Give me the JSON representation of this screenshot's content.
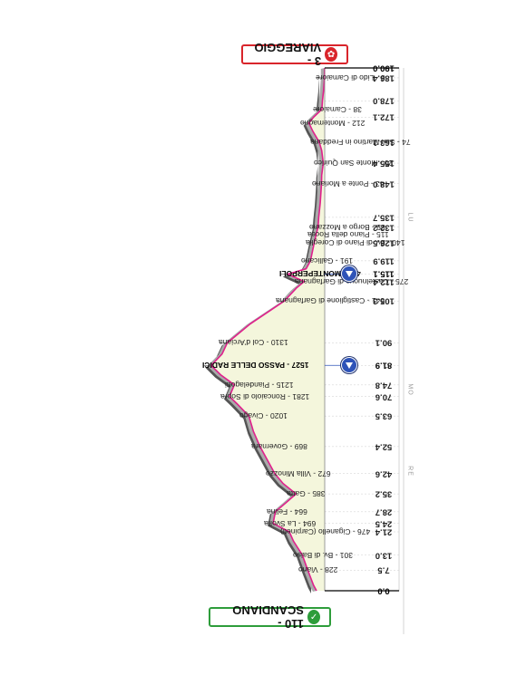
{
  "start": {
    "label": "110 - SCANDIANO",
    "color": "#2e9d3b"
  },
  "finish": {
    "label": "3 - VIAREGGIO",
    "color": "#d9252b"
  },
  "profile": {
    "fill_color": "#f4f6dc",
    "line_color": "#e0208c",
    "shade_color": "#aaaaaa",
    "total_km": 190.0,
    "points": [
      {
        "km": 0.0,
        "alt": 110
      },
      {
        "km": 2.0,
        "alt": 150
      },
      {
        "km": 7.5,
        "alt": 228
      },
      {
        "km": 13.0,
        "alt": 301
      },
      {
        "km": 18.0,
        "alt": 420
      },
      {
        "km": 21.4,
        "alt": 476
      },
      {
        "km": 24.5,
        "alt": 694
      },
      {
        "km": 28.7,
        "alt": 664
      },
      {
        "km": 32.0,
        "alt": 520
      },
      {
        "km": 35.2,
        "alt": 385
      },
      {
        "km": 39.0,
        "alt": 560
      },
      {
        "km": 42.6,
        "alt": 672
      },
      {
        "km": 48.0,
        "alt": 780
      },
      {
        "km": 52.4,
        "alt": 869
      },
      {
        "km": 58.0,
        "alt": 960
      },
      {
        "km": 63.5,
        "alt": 1020
      },
      {
        "km": 68.0,
        "alt": 1180
      },
      {
        "km": 70.6,
        "alt": 1281
      },
      {
        "km": 74.8,
        "alt": 1215
      },
      {
        "km": 78.5,
        "alt": 1400
      },
      {
        "km": 81.9,
        "alt": 1527
      },
      {
        "km": 86.0,
        "alt": 1380
      },
      {
        "km": 90.1,
        "alt": 1310
      },
      {
        "km": 97.0,
        "alt": 1000
      },
      {
        "km": 105.3,
        "alt": 541
      },
      {
        "km": 110.0,
        "alt": 380
      },
      {
        "km": 112.4,
        "alt": 275
      },
      {
        "km": 114.0,
        "alt": 410
      },
      {
        "km": 115.1,
        "alt": 491
      },
      {
        "km": 117.0,
        "alt": 250
      },
      {
        "km": 119.9,
        "alt": 191
      },
      {
        "km": 126.5,
        "alt": 140
      },
      {
        "km": 129.5,
        "alt": 115
      },
      {
        "km": 132.2,
        "alt": 89
      },
      {
        "km": 135.7,
        "alt": 80
      },
      {
        "km": 141.0,
        "alt": 60
      },
      {
        "km": 148.0,
        "alt": 43
      },
      {
        "km": 151.0,
        "alt": 40
      },
      {
        "km": 155.4,
        "alt": 20
      },
      {
        "km": 160.0,
        "alt": 40
      },
      {
        "km": 163.1,
        "alt": 74
      },
      {
        "km": 167.0,
        "alt": 160
      },
      {
        "km": 170.0,
        "alt": 212
      },
      {
        "km": 172.1,
        "alt": 150
      },
      {
        "km": 175.0,
        "alt": 38
      },
      {
        "km": 178.0,
        "alt": 30
      },
      {
        "km": 182.0,
        "alt": 15
      },
      {
        "km": 186.4,
        "alt": 3
      },
      {
        "km": 190.0,
        "alt": 3
      }
    ]
  },
  "km_labels": [
    "0.0",
    "7.5",
    "13.0",
    "21.4",
    "24.5",
    "28.7",
    "35.2",
    "42.6",
    "52.4",
    "63.5",
    "70.6",
    "74.8",
    "81.9",
    "90.1",
    "105.3",
    "112.4",
    "115.1",
    "119.9",
    "126.5",
    "132.2",
    "135.7",
    "148.0",
    "155.4",
    "163.1",
    "172.1",
    "178.0",
    "186.4",
    "190.0"
  ],
  "places": [
    {
      "km": 7.5,
      "text": "228 - Viano"
    },
    {
      "km": 13.0,
      "text": "301 - Bv. di Baiso"
    },
    {
      "km": 21.4,
      "text": "476 - Ciganello (Carpineti)"
    },
    {
      "km": 24.5,
      "text": "694 - La Svolta"
    },
    {
      "km": 28.7,
      "text": "664 - Felina"
    },
    {
      "km": 35.2,
      "text": "385 - Gatta"
    },
    {
      "km": 42.6,
      "text": "672 - Villa Minozzo"
    },
    {
      "km": 52.4,
      "text": "869 - Governara"
    },
    {
      "km": 63.5,
      "text": "1020 - Civago"
    },
    {
      "km": 70.6,
      "text": "1281 - Roncaiolo di Sopra"
    },
    {
      "km": 74.8,
      "text": "1215 - Piandelagotti"
    },
    {
      "km": 81.9,
      "text": "1527 - PASSO DELLE RADICI",
      "major": true
    },
    {
      "km": 90.1,
      "text": "1310 - Col d'Arciana"
    },
    {
      "km": 105.3,
      "text": "541 - Castiglione di Garfagnana"
    },
    {
      "km": 112.4,
      "text": "275 - Castelnuovo di Garfagnana"
    },
    {
      "km": 115.1,
      "text": "491 - MONTEPERPOLI",
      "major": true
    },
    {
      "km": 119.9,
      "text": "191 - Gallicano"
    },
    {
      "km": 126.5,
      "text": "140 - Bv. di Piano di Coreglia"
    },
    {
      "km": 129.5,
      "text": "115 - Piano della Rocca"
    },
    {
      "km": 132.2,
      "text": "89 - Borgo a Mozzano"
    },
    {
      "km": 148.0,
      "text": "43 - Ponte a Moriano"
    },
    {
      "km": 155.4,
      "text": "20 - Monte San Quirico"
    },
    {
      "km": 163.1,
      "text": "74 - San Martino in Freddana"
    },
    {
      "km": 170.0,
      "text": "212 - Montemagno"
    },
    {
      "km": 175.0,
      "text": "38 - Camaiore"
    },
    {
      "km": 186.4,
      "text": "3 - Lido di Camaiore"
    }
  ],
  "sprints": [
    {
      "km": 81.9
    },
    {
      "km": 115.1
    }
  ],
  "side_labels": [
    "RE",
    "MO",
    "LU"
  ]
}
